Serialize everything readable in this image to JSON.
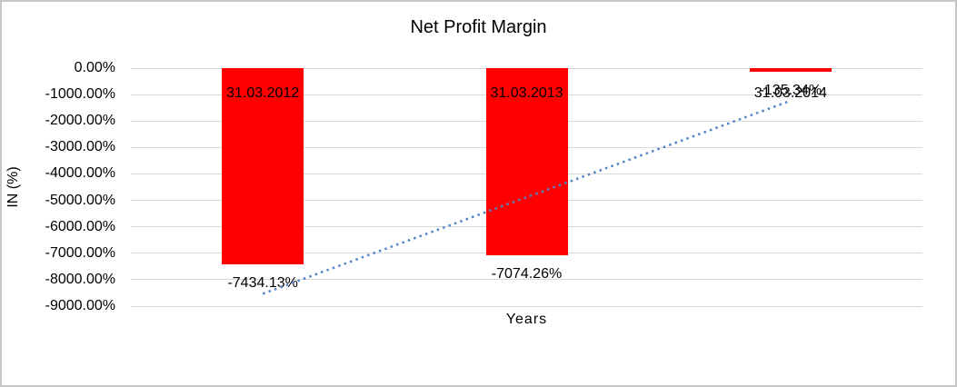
{
  "window": {
    "background": "#ffffff",
    "border_color": "#c6c6c6"
  },
  "chart_data": {
    "type": "bar",
    "title": "Net Profit Margin",
    "xlabel": "Years",
    "ylabel": "IN (%)",
    "categories": [
      "31.03.2012",
      "31.03.2013",
      "31.03.2014"
    ],
    "series": [
      {
        "name": "Net Profit Margin",
        "values": [
          -7434.13,
          -7074.26,
          -135.34
        ]
      }
    ],
    "data_labels": [
      "-7434.13%",
      "-7074.26%",
      "-135.34%"
    ],
    "ylim": [
      -9000,
      0
    ],
    "ytick_step": 1000,
    "ytick_labels": [
      "0.00%",
      "-1000.00%",
      "-2000.00%",
      "-3000.00%",
      "-4000.00%",
      "-5000.00%",
      "-6000.00%",
      "-7000.00%",
      "-8000.00%",
      "-9000.00%"
    ],
    "grid": true,
    "legend": "none",
    "bar_color": "#ff0000",
    "gridline_color": "#d9d9d9",
    "trendline": {
      "type": "linear",
      "style": "dotted",
      "color": "#4f86c6",
      "start_value": -8530,
      "end_value": -1233
    }
  }
}
